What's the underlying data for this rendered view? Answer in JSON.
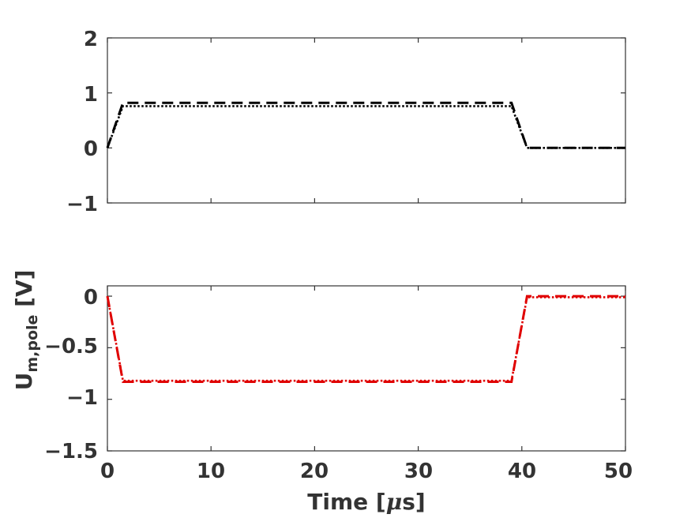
{
  "chart_data": [
    {
      "type": "line",
      "title": "",
      "xlabel": "",
      "ylabel": "",
      "xlim": [
        0,
        50
      ],
      "ylim": [
        -1,
        2
      ],
      "xticks": [
        0,
        10,
        20,
        30,
        40,
        50
      ],
      "yticks": [
        2,
        1,
        0,
        -1
      ],
      "xtick_labels": [
        "",
        "",
        "",
        "",
        "",
        ""
      ],
      "ytick_labels": [
        "2",
        "1",
        "0",
        "−1"
      ],
      "grid": false,
      "series": [
        {
          "style": "dashed",
          "color": "#000000",
          "x": [
            0,
            1.5,
            39,
            40.5,
            50
          ],
          "y": [
            0,
            0.82,
            0.82,
            0,
            0
          ]
        },
        {
          "style": "dotted",
          "color": "#000000",
          "x": [
            0,
            1.5,
            39,
            40.5,
            50
          ],
          "y": [
            0,
            0.76,
            0.76,
            0,
            0
          ]
        }
      ]
    },
    {
      "type": "line",
      "title": "",
      "xlabel": "Time [μs]",
      "ylabel": "U_{m,pole} [V]",
      "ylabel_main": "U",
      "ylabel_sub": "m,pole",
      "ylabel_unit": " [V]",
      "xlabel_text": "Time [",
      "xlabel_mu": "μ",
      "xlabel_tail": "s]",
      "xlim": [
        0,
        50
      ],
      "ylim": [
        -1.5,
        0.1
      ],
      "xticks": [
        0,
        10,
        20,
        30,
        40,
        50
      ],
      "yticks": [
        0,
        -0.5,
        -1,
        -1.5
      ],
      "xtick_labels": [
        "0",
        "10",
        "20",
        "30",
        "40",
        "50"
      ],
      "ytick_labels": [
        "0",
        "−0.5",
        "−1",
        "−1.5"
      ],
      "grid": false,
      "series": [
        {
          "style": "dashed",
          "color": "#e00000",
          "x": [
            0,
            1.5,
            39,
            40.5,
            50
          ],
          "y": [
            0,
            -0.83,
            -0.83,
            0,
            0
          ]
        },
        {
          "style": "dotted",
          "color": "#e00000",
          "x": [
            0,
            1.5,
            39,
            40.5,
            50
          ],
          "y": [
            0,
            -0.82,
            -0.82,
            -0.01,
            -0.01
          ]
        }
      ]
    }
  ]
}
